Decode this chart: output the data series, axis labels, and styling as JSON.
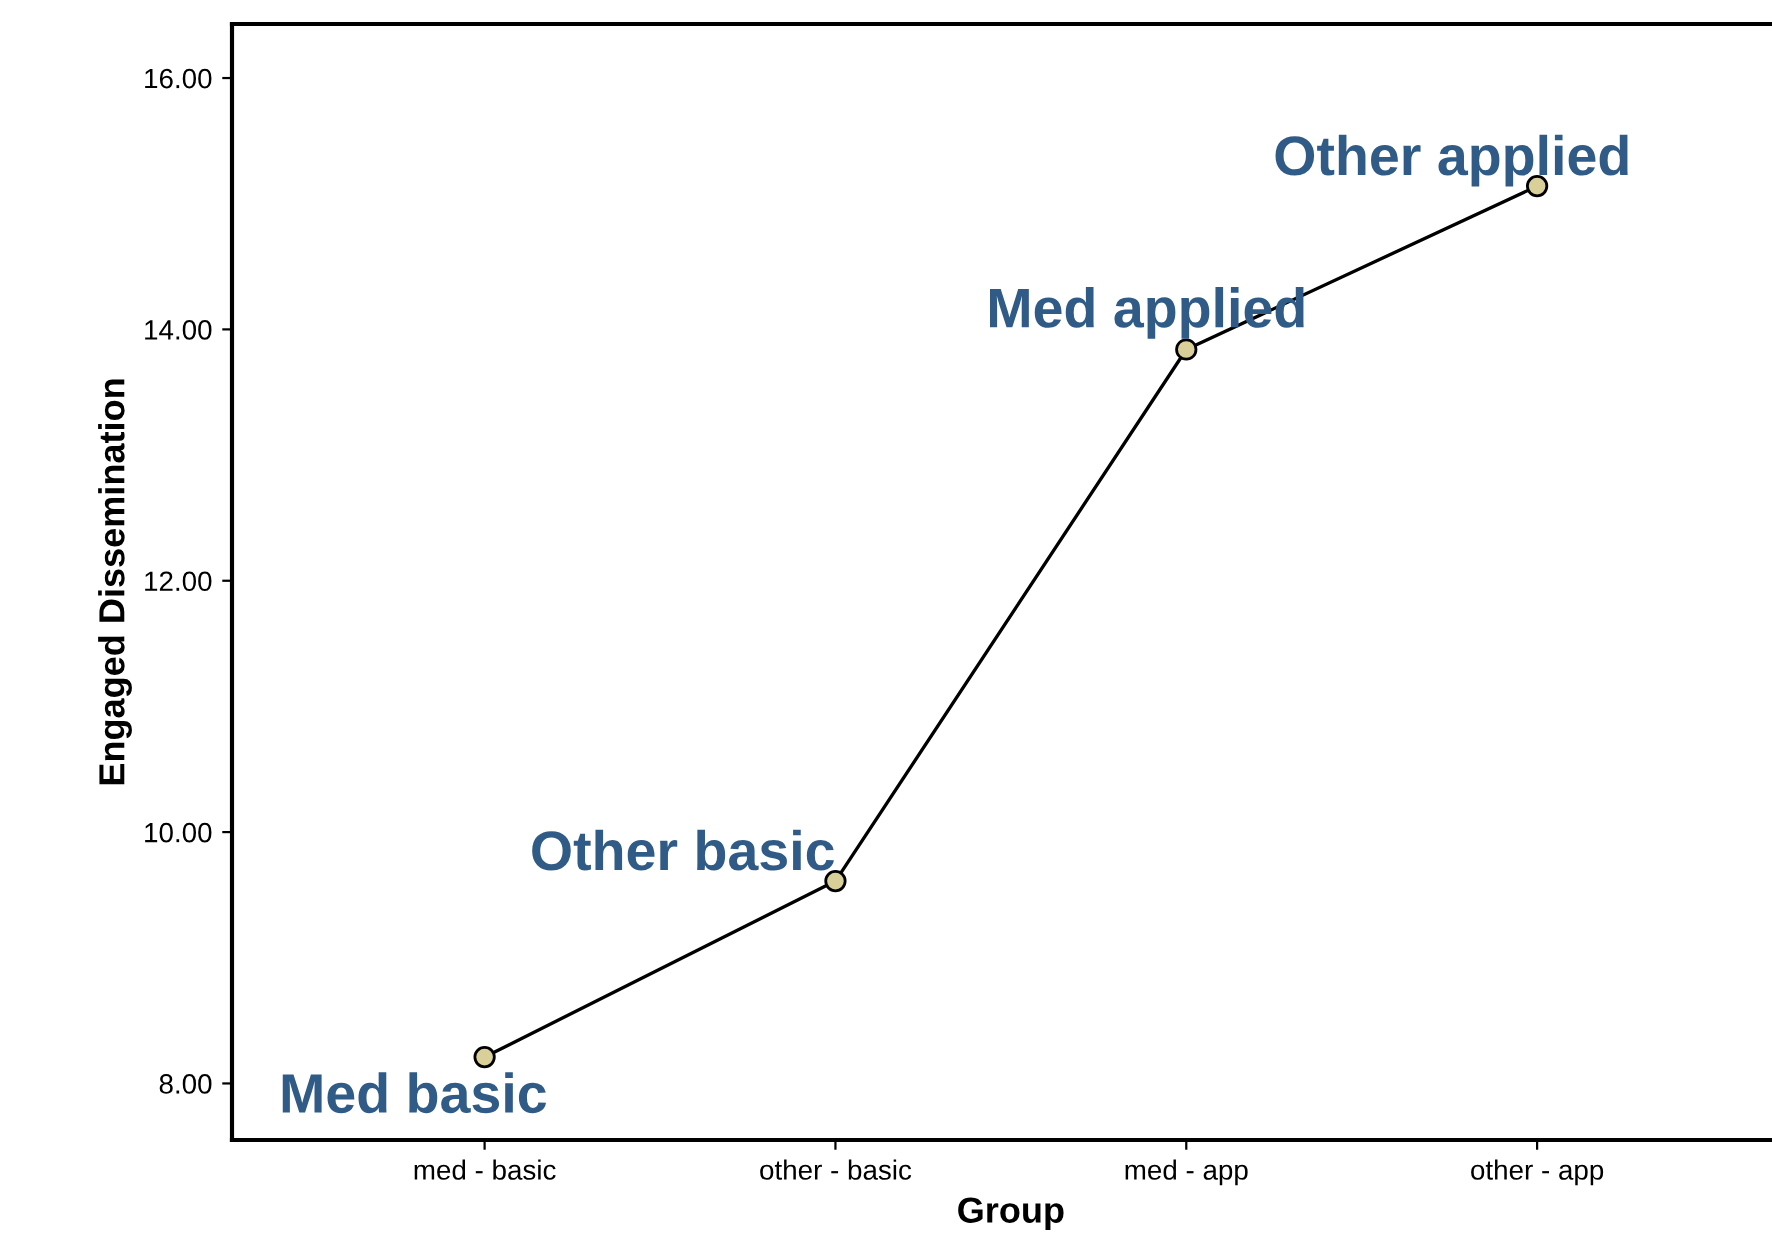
{
  "chart_data": {
    "type": "line",
    "xlabel": "Group",
    "ylabel": "Engaged Dissemination",
    "categories": [
      "med - basic",
      "other - basic",
      "med - app",
      "other - app"
    ],
    "series": [
      {
        "color": "#000000",
        "values": [
          8.21,
          9.61,
          13.84,
          15.14
        ]
      }
    ],
    "ylim": [
      7.55,
      16.43
    ],
    "yticks": [
      {
        "value": 8,
        "label": "8.00"
      },
      {
        "value": 10,
        "label": "10.00"
      },
      {
        "value": 12,
        "label": "12.00"
      },
      {
        "value": 14,
        "label": "14.00"
      },
      {
        "value": 16,
        "label": "16.00"
      }
    ],
    "marker": "circle",
    "line_style": "solid",
    "grid": false,
    "legend": false,
    "annotations": [
      {
        "text": "Med basic",
        "x": "med - basic",
        "y": 8.21
      },
      {
        "text": "Other basic",
        "x": "other - basic",
        "y": 9.61
      },
      {
        "text": "Med applied",
        "x": "med - app",
        "y": 13.84
      },
      {
        "text": "Other applied",
        "x": "other - app",
        "y": 15.14
      }
    ]
  }
}
